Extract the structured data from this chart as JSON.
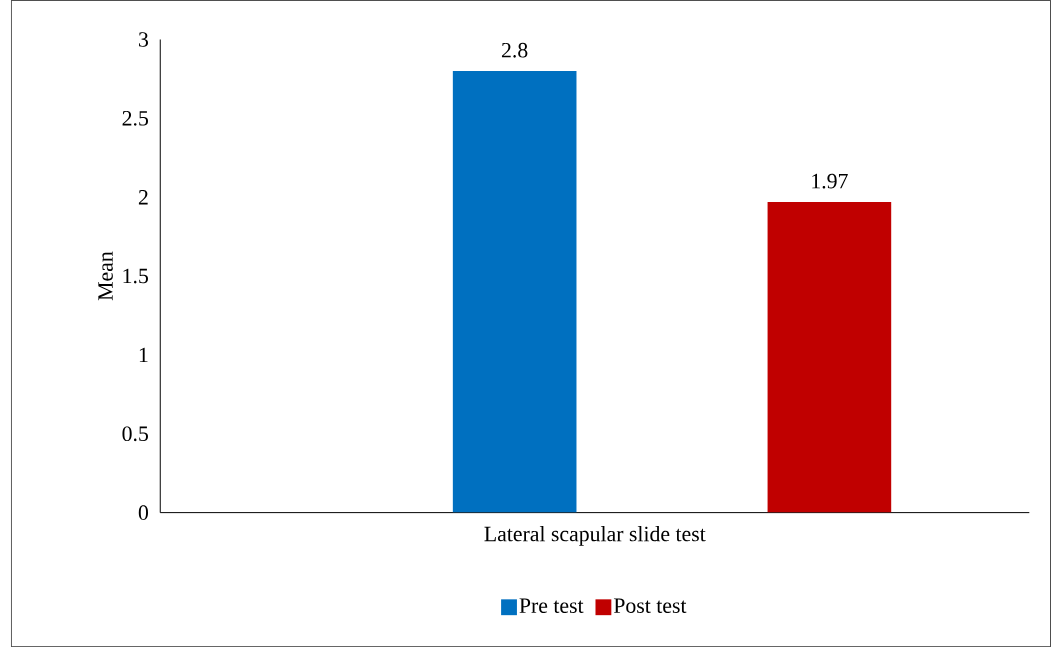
{
  "chart_data": {
    "type": "bar",
    "ylabel": "Mean",
    "categories": [
      "Lateral scapular slide test"
    ],
    "series": [
      {
        "name": "Pre test",
        "color": "#0070c0",
        "values": [
          2.8
        ]
      },
      {
        "name": "Post test",
        "color": "#c00000",
        "values": [
          1.97
        ]
      }
    ],
    "ylim": [
      0,
      3
    ],
    "yticks": [
      0,
      0.5,
      1,
      1.5,
      2,
      2.5,
      3
    ],
    "data_labels": true,
    "legend": "bottom",
    "grid": false
  }
}
